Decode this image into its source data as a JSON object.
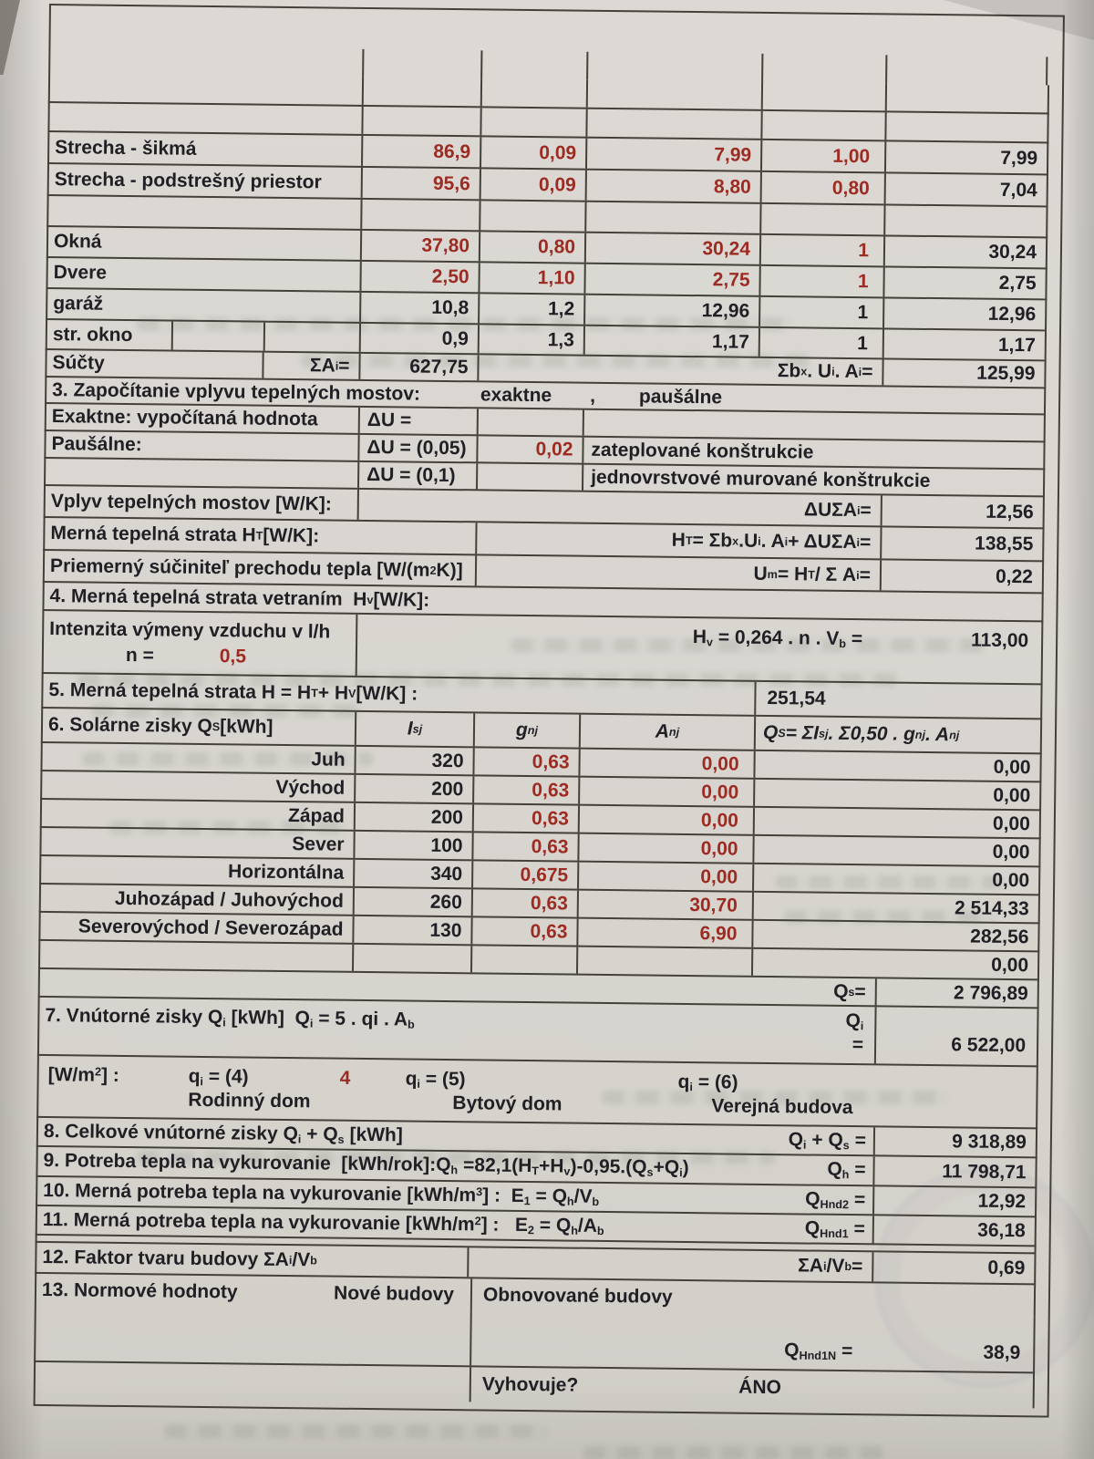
{
  "colors": {
    "paper": "#d9d6d1",
    "line": "#44413a",
    "ink": "#211f24",
    "accent_red": "#9c2b22"
  },
  "table": {
    "envelope": {
      "rows": [
        {
          "label": "Strecha - šikmá",
          "area": "86,9",
          "u": "0,09",
          "ua": "7,99",
          "b": "1,00",
          "result": "7,99"
        },
        {
          "label": "Strecha - podstrešný priestor",
          "area": "95,6",
          "u": "0,09",
          "ua": "8,80",
          "b": "0,80",
          "result": "7,04"
        },
        {
          "label": "Okná",
          "area": "37,80",
          "u": "0,80",
          "ua": "30,24",
          "b": "1",
          "result": "30,24"
        },
        {
          "label": "Dvere",
          "area": "2,50",
          "u": "1,10",
          "ua": "2,75",
          "b": "1",
          "result": "2,75"
        },
        {
          "label": "garáž",
          "area": "10,8",
          "u": "1,2",
          "ua": "12,96",
          "b": "1",
          "result": "12,96"
        },
        {
          "label": "str. okno",
          "area": "0,9",
          "u": "1,3",
          "ua": "1,17",
          "b": "1",
          "result": "1,17"
        }
      ],
      "totals": {
        "label": "Súčty",
        "sum_symbol_html": "ΣA<sub>i</sub>=",
        "sum_area": "627,75",
        "formula_html": "Σb<sub>x</sub> . U<sub>i</sub> . A<sub>i</sub> =",
        "result": "125,99"
      }
    },
    "section3": {
      "title": "3. Započítanie vplyvu tepelných mostov:",
      "option_exact": "exaktne",
      "comma": ",",
      "option_flat": "paušálne",
      "rows": [
        {
          "label": "Exaktne: vypočítaná hodnota",
          "delta": "ΔU =",
          "value": "",
          "note": ""
        },
        {
          "label": "Paušálne:",
          "delta": "ΔU = (0,05)",
          "value": "0,02",
          "note": "zateplované konštrukcie"
        },
        {
          "label": "",
          "delta": "ΔU = (0,1)",
          "value": "",
          "note": "jednovrstvové murované konštrukcie"
        }
      ],
      "bridge": {
        "label": "Vplyv tepelných mostov [W/K]:",
        "formula_html": "ΔUΣA<sub>i</sub> =",
        "value": "12,56"
      },
      "ht": {
        "label_html": "Merná tepelná strata H<sub>T</sub> [W/K]:",
        "formula_html": "H<sub>T</sub> = Σb<sub>x</sub> .U<sub>i</sub> . A<sub>i</sub> + ΔUΣA<sub>i</sub> =",
        "value": "138,55"
      },
      "um": {
        "label_html": "Priemerný súčiniteľ prechodu tepla [W/(m<sup>2</sup>K)]",
        "formula_html": "U<sub>m</sub> = H<sub>T</sub> / Σ A<sub>i</sub> =",
        "value": "0,22"
      }
    },
    "section4": {
      "title_html": "4. Merná tepelná strata vetraním&nbsp; H<sub>v</sub> [W/K]:",
      "row_label": "Intenzita výmeny vzduchu v l/h",
      "formula_html": "H<sub>v</sub> = 0,264 . n . V<sub>b</sub> =",
      "value": "113,00",
      "n_label": "n =",
      "n_value": "0,5"
    },
    "section5": {
      "label_html": "5. Merná tepelná strata H = H<sub>T</sub> + H<sub>V</sub> [W/K] :",
      "value": "251,54"
    },
    "section6": {
      "title_html": "6. Solárne zisky Q<sub>S</sub> [kWh]",
      "col_i_html": "I<sub>sj</sub>",
      "col_g_html": "g<sub>nj</sub>",
      "col_a_html": "A<sub>nj</sub>",
      "formula_html": "Q<sub>S</sub> = ΣI<sub>sj</sub> . Σ0,50 . g<sub>nj</sub> . A<sub>nj</sub>",
      "rows": [
        {
          "label": "Juh",
          "i": "320",
          "g": "0,63",
          "a": "0,00",
          "q": "0,00"
        },
        {
          "label": "Východ",
          "i": "200",
          "g": "0,63",
          "a": "0,00",
          "q": "0,00"
        },
        {
          "label": "Západ",
          "i": "200",
          "g": "0,63",
          "a": "0,00",
          "q": "0,00"
        },
        {
          "label": "Sever",
          "i": "100",
          "g": "0,63",
          "a": "0,00",
          "q": "0,00"
        },
        {
          "label": "Horizontálna",
          "i": "340",
          "g": "0,675",
          "a": "0,00",
          "q": "0,00"
        },
        {
          "label": "Juhozápad / Juhovýchod",
          "i": "260",
          "g": "0,63",
          "a": "30,70",
          "q": "2 514,33"
        },
        {
          "label": "Severovýchod / Severozápad",
          "i": "130",
          "g": "0,63",
          "a": "6,90",
          "q": "282,56"
        },
        {
          "label": "",
          "i": "",
          "g": "",
          "a": "",
          "q": "0,00"
        }
      ],
      "total_label_html": "Q<sub>s</sub> =",
      "total_value": "2 796,89"
    },
    "section7": {
      "title_html": "7. Vnútorné zisky Q<sub>i</sub> [kWh]&nbsp; Q<sub>i</sub> = 5 . qi . A<sub>b</sub>",
      "q_symbol_html": "Q<sub>i</sub>",
      "equals": "=",
      "value": "6 522,00",
      "unit_html": "[W/m<sup>2</sup>] :",
      "q4_html": "q<sub>i</sub> = (4)",
      "q4_value": "4",
      "q5_html": "q<sub>i</sub> = (5)",
      "q6_html": "q<sub>i</sub> = (6)",
      "cat_family": "Rodinný dom",
      "cat_apartment": "Bytový dom",
      "cat_public": "Verejná budova"
    },
    "section8": {
      "label_html": "8. Celkové vnútorné zisky Q<sub>i</sub> + Q<sub>s</sub> [kWh]",
      "symbol_html": "Q<sub>i</sub> + Q<sub>s</sub> =",
      "value": "9 318,89"
    },
    "section9": {
      "label_html": "9. Potreba tepla na vykurovanie&nbsp; [kWh/rok]:Q<sub>h</sub> =82,1(H<sub>T</sub>+H<sub>v</sub>)-0,95.(Q<sub>s</sub>+Q<sub>i</sub>)",
      "symbol_html": "Q<sub>h</sub> =",
      "value": "11 798,71"
    },
    "section10": {
      "label_html": "10. Merná potreba tepla na vykurovanie [kWh/m<sup>3</sup>] :&nbsp; E<sub>1</sub> = Q<sub>h</sub>/V<sub>b</sub>",
      "symbol_html": "Q<sub>Hnd2</sub> =",
      "value": "12,92"
    },
    "section11": {
      "label_html": "11. Merná potreba tepla na vykurovanie [kWh/m<sup>2</sup>] :&nbsp;&nbsp; E<sub>2</sub> = Q<sub>h</sub>/A<sub>b</sub>",
      "symbol_html": "Q<sub>Hnd1</sub> =",
      "value": "36,18"
    },
    "section12": {
      "label_html": "12. Faktor tvaru budovy ΣA<sub>i</sub>/V<sub>b</sub>",
      "symbol_html": "ΣA<sub>i</sub>/V<sub>b</sub> =",
      "value": "0,69"
    },
    "section13": {
      "label": "13. Normové hodnoty",
      "new_buildings": "Nové budovy",
      "renovated_buildings": "Obnovované budovy",
      "symbol_html": "Q<sub>Hnd1N</sub> =",
      "value": "38,9",
      "question": "Vyhovuje?",
      "answer": "ÁNO"
    }
  }
}
